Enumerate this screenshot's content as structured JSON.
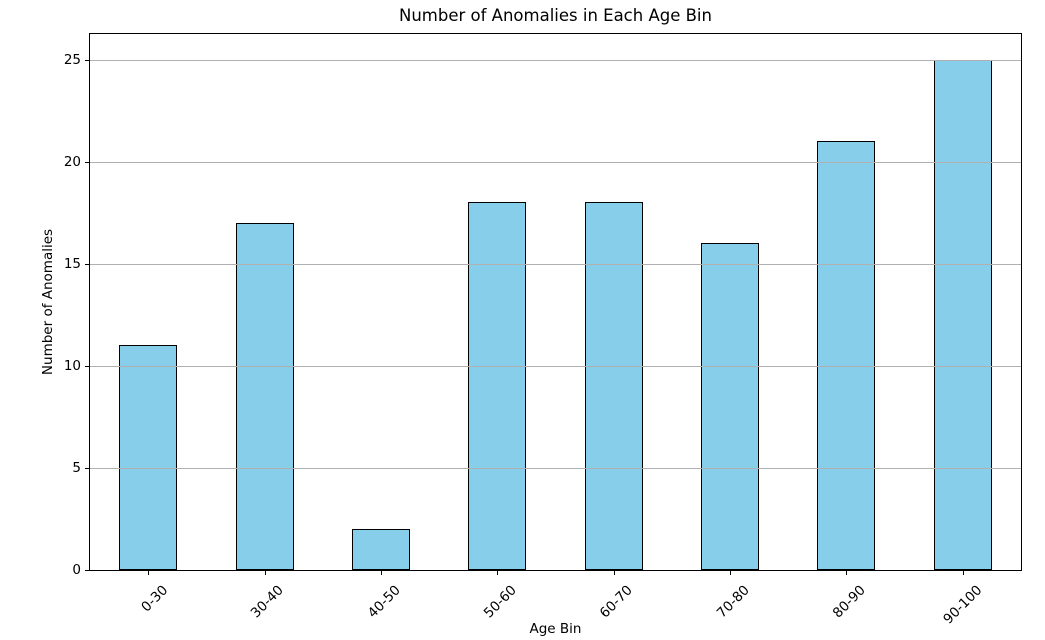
{
  "chart_data": {
    "type": "bar",
    "title": "Number of Anomalies in Each Age Bin",
    "xlabel": "Age Bin",
    "ylabel": "Number of Anomalies",
    "categories": [
      "0-30",
      "30-40",
      "40-50",
      "50-60",
      "60-70",
      "70-80",
      "80-90",
      "90-100"
    ],
    "values": [
      11,
      17,
      2,
      18,
      18,
      16,
      21,
      25
    ],
    "yticks": [
      0,
      5,
      10,
      15,
      20,
      25
    ],
    "ylim": [
      0,
      26.25
    ],
    "bar_width_fraction": 0.5,
    "grid": "horizontal-gridlines-on",
    "legend": "none",
    "x_tick_rotation_deg": 45,
    "colors": {
      "bar_fill": "#87CEEB",
      "bar_edge": "#000000",
      "grid": "#b0b0b0",
      "text": "#000000",
      "background": "#ffffff"
    }
  }
}
